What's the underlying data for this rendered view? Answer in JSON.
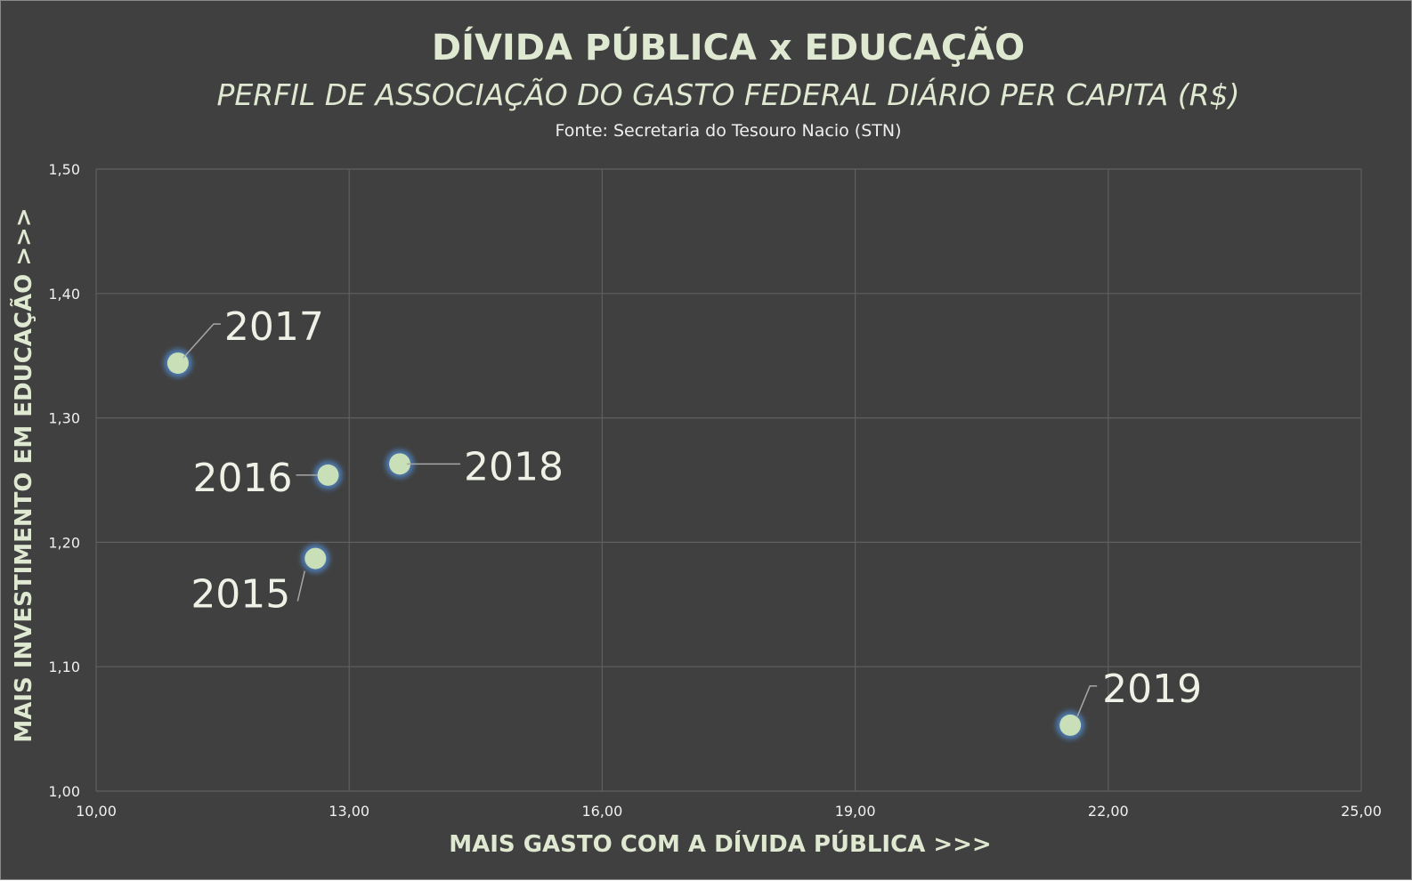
{
  "title": "DÍVIDA PÚBLICA x EDUCAÇÃO",
  "subtitle": "PERFIL DE ASSOCIAÇÃO DO GASTO FEDERAL DIÁRIO PER CAPITA (R$)",
  "source": "Fonte: Secretaria do Tesouro Nacio (STN)",
  "colors": {
    "background": "#404040",
    "text": "#dfe8d0",
    "marker_fill": "#c9dfb8",
    "marker_glow": "#4f81bd",
    "gridline": "#5f5f5f"
  },
  "chart_data": {
    "type": "scatter",
    "title": "DÍVIDA PÚBLICA x EDUCAÇÃO",
    "subtitle": "PERFIL DE ASSOCIAÇÃO DO GASTO FEDERAL DIÁRIO PER CAPITA (R$)",
    "xlabel": "MAIS GASTO COM A DÍVIDA PÚBLICA >>>",
    "ylabel": "MAIS INVESTIMENTO EM EDUCAÇÃO >>>",
    "xlim": [
      10,
      25
    ],
    "ylim": [
      1.0,
      1.5
    ],
    "x_ticks": [
      "10,00",
      "13,00",
      "16,00",
      "19,00",
      "22,00",
      "25,00"
    ],
    "y_ticks": [
      "1,00",
      "1,10",
      "1,20",
      "1,30",
      "1,40",
      "1,50"
    ],
    "grid": true,
    "legend": "none",
    "points": [
      {
        "label": "2015",
        "x": 12.6,
        "y": 1.187
      },
      {
        "label": "2016",
        "x": 12.75,
        "y": 1.254
      },
      {
        "label": "2017",
        "x": 10.97,
        "y": 1.344
      },
      {
        "label": "2018",
        "x": 13.6,
        "y": 1.263
      },
      {
        "label": "2019",
        "x": 21.55,
        "y": 1.053
      }
    ]
  }
}
